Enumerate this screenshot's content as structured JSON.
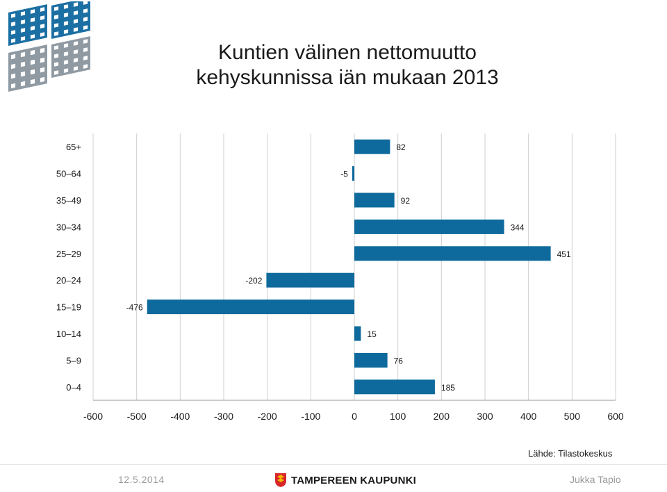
{
  "title_line1": "Kuntien välinen nettomuutto",
  "title_line2": "kehyskunnissa iän mukaan 2013",
  "source": "Lähde: Tilastokeskus",
  "footer": {
    "date": "12.5.2014",
    "organization": "TAMPEREEN KAUPUNKI",
    "author": "Jukka Tapio"
  },
  "colors": {
    "bar": "#0e6a9c",
    "logo_blue": "#1b6fa3",
    "logo_gray": "#8f9aa3",
    "shield_red": "#d7262a",
    "shield_gold": "#f2b400"
  },
  "chart_data": {
    "type": "bar",
    "orientation": "horizontal",
    "title": "Kuntien välinen nettomuutto kehyskunnissa iän mukaan 2013",
    "categories": [
      "65+",
      "50–64",
      "35–49",
      "30–34",
      "25–29",
      "20–24",
      "15–19",
      "10–14",
      "5–9",
      "0–4"
    ],
    "values": [
      82,
      -5,
      92,
      344,
      451,
      -202,
      -476,
      15,
      76,
      185
    ],
    "xlim": [
      -600,
      600
    ],
    "xticks": [
      "-600",
      "-500",
      "-400",
      "-300",
      "-200",
      "-100",
      "0",
      "100",
      "200",
      "300",
      "400",
      "500",
      "600"
    ],
    "grid": "vertical",
    "legend": "none"
  }
}
